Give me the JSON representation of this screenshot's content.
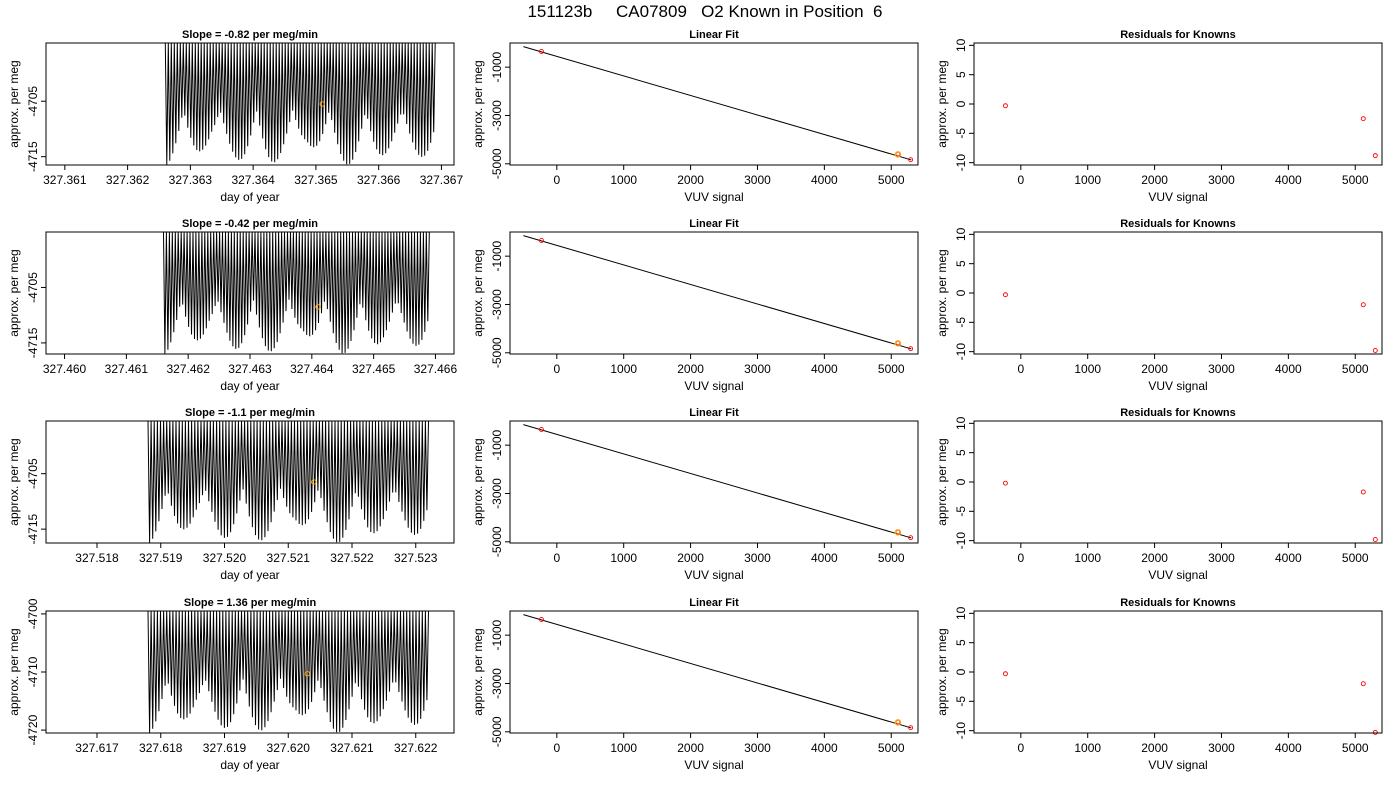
{
  "figure": {
    "title": "151123b     CA07809   O2 Known in Position  6"
  },
  "colors": {
    "trace": "#000000",
    "point": "#ff0000",
    "highlight": "#ffa500",
    "frame": "#000000"
  },
  "chart_data": [
    {
      "type": "line",
      "row": 1,
      "panel": "time-series",
      "title": "Slope =  -0.82  per meg/min",
      "xlabel": "day of year",
      "ylabel": "approx. per meg",
      "xlim": [
        327.3607,
        327.3672
      ],
      "ylim": [
        -4716.5,
        -4694.5
      ],
      "xticks": [
        "327.361",
        "327.362",
        "327.363",
        "327.364",
        "327.365",
        "327.366",
        "327.367"
      ],
      "yticks": [
        "-4705",
        "-4715"
      ],
      "trace": {
        "x_start": 327.3626,
        "x_end": 327.3669,
        "y_high": -4694.5,
        "y_low": -4716.5,
        "cycles": 90
      },
      "marker": {
        "x": 327.3651,
        "y": -4705.5
      }
    },
    {
      "type": "scatter",
      "row": 1,
      "panel": "linear-fit",
      "title": "Linear Fit",
      "xlabel": "VUV signal",
      "ylabel": "approx. per meg",
      "xlim": [
        -700,
        5400
      ],
      "ylim": [
        -5050,
        0
      ],
      "xticks": [
        "0",
        "1000",
        "2000",
        "3000",
        "4000",
        "5000"
      ],
      "yticks": [
        "-1000",
        "-3000",
        "-5000"
      ],
      "points": [
        {
          "x": -230,
          "y": -350
        },
        {
          "x": 5100,
          "y": -4600
        },
        {
          "x": 5290,
          "y": -4830
        }
      ],
      "highlight": {
        "x": 5100,
        "y": -4610
      },
      "fit_line": {
        "x": [
          -500,
          5300
        ],
        "y": [
          -150,
          -4840
        ]
      }
    },
    {
      "type": "scatter",
      "row": 1,
      "panel": "residuals",
      "title": "Residuals for Knowns",
      "xlabel": "VUV signal",
      "ylabel": "approx. per meg",
      "xlim": [
        -700,
        5400
      ],
      "ylim": [
        -10.4,
        10.4
      ],
      "xticks": [
        "0",
        "1000",
        "2000",
        "3000",
        "4000",
        "5000"
      ],
      "yticks": [
        "-10",
        "-5",
        "0",
        "5",
        "10"
      ],
      "points": [
        {
          "x": -230,
          "y": -0.3
        },
        {
          "x": 5120,
          "y": -2.5
        },
        {
          "x": 5300,
          "y": -8.8
        }
      ]
    },
    {
      "type": "line",
      "row": 2,
      "panel": "time-series",
      "title": "Slope =  -0.42  per meg/min",
      "xlabel": "day of year",
      "ylabel": "approx. per meg",
      "xlim": [
        327.4597,
        327.4663
      ],
      "ylim": [
        -4717,
        -4695
      ],
      "xticks": [
        "327.460",
        "327.461",
        "327.462",
        "327.463",
        "327.464",
        "327.465",
        "327.466"
      ],
      "yticks": [
        "-4705",
        "-4715"
      ],
      "trace": {
        "x_start": 327.4616,
        "x_end": 327.4659,
        "y_high": -4695,
        "y_low": -4717,
        "cycles": 90
      },
      "marker": {
        "x": 327.4641,
        "y": -4708.5
      }
    },
    {
      "type": "scatter",
      "row": 2,
      "panel": "linear-fit",
      "title": "Linear Fit",
      "xlabel": "VUV signal",
      "ylabel": "approx. per meg",
      "xlim": [
        -700,
        5400
      ],
      "ylim": [
        -5050,
        0
      ],
      "xticks": [
        "0",
        "1000",
        "2000",
        "3000",
        "4000",
        "5000"
      ],
      "yticks": [
        "-1000",
        "-3000",
        "-5000"
      ],
      "points": [
        {
          "x": -230,
          "y": -350
        },
        {
          "x": 5100,
          "y": -4600
        },
        {
          "x": 5290,
          "y": -4830
        }
      ],
      "highlight": {
        "x": 5100,
        "y": -4610
      },
      "fit_line": {
        "x": [
          -500,
          5300
        ],
        "y": [
          -150,
          -4840
        ]
      }
    },
    {
      "type": "scatter",
      "row": 2,
      "panel": "residuals",
      "title": "Residuals for Knowns",
      "xlabel": "VUV signal",
      "ylabel": "approx. per meg",
      "xlim": [
        -700,
        5400
      ],
      "ylim": [
        -10.4,
        10.4
      ],
      "xticks": [
        "0",
        "1000",
        "2000",
        "3000",
        "4000",
        "5000"
      ],
      "yticks": [
        "-10",
        "-5",
        "0",
        "5",
        "10"
      ],
      "points": [
        {
          "x": -230,
          "y": -0.3
        },
        {
          "x": 5120,
          "y": -2.0
        },
        {
          "x": 5300,
          "y": -9.8
        }
      ]
    },
    {
      "type": "line",
      "row": 3,
      "panel": "time-series",
      "title": "Slope =  -1.1  per meg/min",
      "xlabel": "day of year",
      "ylabel": "approx. per meg",
      "xlim": [
        327.5172,
        327.5236
      ],
      "ylim": [
        -4717.5,
        -4695.5
      ],
      "xticks": [
        "327.518",
        "327.519",
        "327.520",
        "327.521",
        "327.522",
        "327.523"
      ],
      "yticks": [
        "-4705",
        "-4715"
      ],
      "trace": {
        "x_start": 327.5188,
        "x_end": 327.5232,
        "y_high": -4695.5,
        "y_low": -4717.5,
        "cycles": 90
      },
      "marker": {
        "x": 327.5214,
        "y": -4706.5
      }
    },
    {
      "type": "scatter",
      "row": 3,
      "panel": "linear-fit",
      "title": "Linear Fit",
      "xlabel": "VUV signal",
      "ylabel": "approx. per meg",
      "xlim": [
        -700,
        5400
      ],
      "ylim": [
        -5050,
        0
      ],
      "xticks": [
        "0",
        "1000",
        "2000",
        "3000",
        "4000",
        "5000"
      ],
      "yticks": [
        "-1000",
        "-3000",
        "-5000"
      ],
      "points": [
        {
          "x": -230,
          "y": -350
        },
        {
          "x": 5100,
          "y": -4600
        },
        {
          "x": 5290,
          "y": -4830
        }
      ],
      "highlight": {
        "x": 5100,
        "y": -4610
      },
      "fit_line": {
        "x": [
          -500,
          5300
        ],
        "y": [
          -150,
          -4840
        ]
      }
    },
    {
      "type": "scatter",
      "row": 3,
      "panel": "residuals",
      "title": "Residuals for Knowns",
      "xlabel": "VUV signal",
      "ylabel": "approx. per meg",
      "xlim": [
        -700,
        5400
      ],
      "ylim": [
        -10.4,
        10.4
      ],
      "xticks": [
        "0",
        "1000",
        "2000",
        "3000",
        "4000",
        "5000"
      ],
      "yticks": [
        "-10",
        "-5",
        "0",
        "5",
        "10"
      ],
      "points": [
        {
          "x": -230,
          "y": -0.2
        },
        {
          "x": 5120,
          "y": -1.7
        },
        {
          "x": 5300,
          "y": -9.8
        }
      ]
    },
    {
      "type": "line",
      "row": 4,
      "panel": "time-series",
      "title": "Slope =  1.36  per meg/min",
      "xlabel": "day of year",
      "ylabel": "approx. per meg",
      "xlim": [
        327.6162,
        327.6226
      ],
      "ylim": [
        -4720.5,
        -4699.5
      ],
      "xticks": [
        "327.617",
        "327.618",
        "327.619",
        "327.620",
        "327.621",
        "327.622"
      ],
      "yticks": [
        "-4700",
        "-4710",
        "-4720"
      ],
      "trace": {
        "x_start": 327.6178,
        "x_end": 327.6222,
        "y_high": -4699.5,
        "y_low": -4720.5,
        "cycles": 90
      },
      "marker": {
        "x": 327.6203,
        "y": -4710.3
      }
    },
    {
      "type": "scatter",
      "row": 4,
      "panel": "linear-fit",
      "title": "Linear Fit",
      "xlabel": "VUV signal",
      "ylabel": "approx. per meg",
      "xlim": [
        -700,
        5400
      ],
      "ylim": [
        -5050,
        0
      ],
      "xticks": [
        "0",
        "1000",
        "2000",
        "3000",
        "4000",
        "5000"
      ],
      "yticks": [
        "-1000",
        "-3000",
        "-5000"
      ],
      "points": [
        {
          "x": -230,
          "y": -350
        },
        {
          "x": 5100,
          "y": -4600
        },
        {
          "x": 5290,
          "y": -4830
        }
      ],
      "highlight": {
        "x": 5100,
        "y": -4610
      },
      "fit_line": {
        "x": [
          -500,
          5300
        ],
        "y": [
          -150,
          -4840
        ]
      }
    },
    {
      "type": "scatter",
      "row": 4,
      "panel": "residuals",
      "title": "Residuals for Knowns",
      "xlabel": "VUV signal",
      "ylabel": "approx. per meg",
      "xlim": [
        -700,
        5400
      ],
      "ylim": [
        -10.4,
        10.4
      ],
      "xticks": [
        "0",
        "1000",
        "2000",
        "3000",
        "4000",
        "5000"
      ],
      "yticks": [
        "-10",
        "-5",
        "0",
        "5",
        "10"
      ],
      "points": [
        {
          "x": -230,
          "y": -0.3
        },
        {
          "x": 5120,
          "y": -2.0
        },
        {
          "x": 5300,
          "y": -10.3
        }
      ]
    }
  ]
}
